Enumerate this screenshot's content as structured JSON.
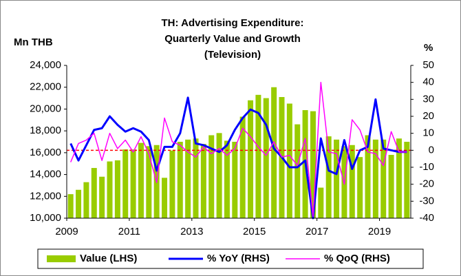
{
  "chart_data": {
    "type": "bar_line",
    "title_lines": [
      "TH: Advertising Expenditure:",
      "Quarterly Value and Growth",
      "(Television)"
    ],
    "y_label": "Mn THB",
    "y2_label": "%",
    "categories": [
      "2009",
      null,
      null,
      null,
      null,
      null,
      null,
      null,
      "2011",
      null,
      null,
      null,
      null,
      null,
      null,
      null,
      "2013",
      null,
      null,
      null,
      null,
      null,
      null,
      null,
      "2015",
      null,
      null,
      null,
      null,
      null,
      null,
      null,
      "2017",
      null,
      null,
      null,
      null,
      null,
      null,
      null,
      "2019",
      null,
      null,
      null
    ],
    "ylim": [
      10000,
      24000
    ],
    "yticks": [
      {
        "value": 10000,
        "label": "10,000"
      },
      {
        "value": 12000,
        "label": "12,000"
      },
      {
        "value": 14000,
        "label": "14,000"
      },
      {
        "value": 16000,
        "label": "16,000"
      },
      {
        "value": 18000,
        "label": "18,000"
      },
      {
        "value": 20000,
        "label": "20,000"
      },
      {
        "value": 22000,
        "label": "22,000"
      },
      {
        "value": 24000,
        "label": "24,000"
      }
    ],
    "y2lim": [
      -40,
      50
    ],
    "y2ticks": [
      -40,
      -30,
      -20,
      -10,
      0,
      10,
      20,
      30,
      40,
      50
    ],
    "series": [
      {
        "name": "Value (LHS)",
        "kind": "bar",
        "color": "#99cc00",
        "values": [
          12200,
          12600,
          13300,
          14600,
          13800,
          15200,
          15300,
          16300,
          16300,
          16900,
          16600,
          16700,
          13700,
          16200,
          17000,
          17200,
          17300,
          16800,
          17600,
          17800,
          17100,
          17000,
          19300,
          20800,
          21300,
          21000,
          22000,
          21100,
          20500,
          18600,
          19900,
          19800,
          12800,
          17500,
          17200,
          16600,
          16700,
          15600,
          17600,
          17200,
          17200,
          15800,
          17300,
          17000
        ]
      },
      {
        "name": "% YoY (RHS)",
        "kind": "line",
        "axis": "y2",
        "color": "#0000ff",
        "values": [
          4,
          -6,
          3,
          12,
          13,
          20,
          15,
          11,
          13,
          11,
          6,
          -12,
          2,
          2,
          10,
          31,
          4,
          3,
          1,
          -1,
          3,
          12,
          19,
          24,
          22,
          15,
          1,
          -4,
          -10,
          -10,
          -6,
          -40,
          7,
          -12,
          -14,
          6,
          -11,
          0,
          2,
          30,
          1,
          0,
          -1,
          -1
        ]
      },
      {
        "name": "% QoQ (RHS)",
        "kind": "line",
        "axis": "y2",
        "color": "#ff00ff",
        "values": [
          -7,
          4,
          6,
          10,
          -6,
          10,
          1,
          6,
          -1,
          8,
          -2,
          -19,
          19,
          5,
          3,
          -1,
          -4,
          2,
          -2,
          1,
          -3,
          1,
          13,
          8,
          2,
          -3,
          5,
          -4,
          -3,
          -9,
          7,
          -39,
          40,
          -1,
          -2,
          -20,
          18,
          12,
          -1,
          -2,
          -9,
          11,
          -1,
          -1
        ]
      }
    ]
  }
}
